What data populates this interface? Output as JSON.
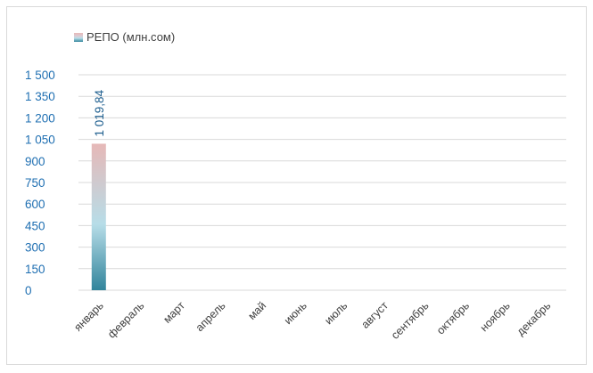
{
  "chart_data": {
    "type": "bar",
    "series": [
      {
        "name": "РЕПО (млн.сом)",
        "values": [
          1019.84,
          null,
          null,
          null,
          null,
          null,
          null,
          null,
          null,
          null,
          null,
          null
        ],
        "data_labels": [
          "1 019,84",
          "",
          "",
          "",
          "",
          "",
          "",
          "",
          "",
          "",
          "",
          ""
        ]
      }
    ],
    "categories": [
      "январь",
      "февраль",
      "март",
      "апрель",
      "май",
      "июнь",
      "июль",
      "август",
      "сентябрь",
      "октябрь",
      "ноябрь",
      "декабрь"
    ],
    "ylim": [
      0,
      1500
    ],
    "yticks": [
      0,
      150,
      300,
      450,
      600,
      750,
      900,
      1050,
      1200,
      1350,
      1500
    ],
    "ytick_labels": [
      "0",
      "150",
      "300",
      "450",
      "600",
      "750",
      "900",
      "1 050",
      "1 200",
      "1 350",
      "1 500"
    ],
    "grid": true,
    "legend_position": "top-left",
    "colors": {
      "bar_top": "#e6b8b7",
      "bar_mid": "#b7dde8",
      "bar_bottom": "#31849b",
      "tick_text": "#1f6fb2",
      "gridline": "#d9d9d9"
    }
  }
}
